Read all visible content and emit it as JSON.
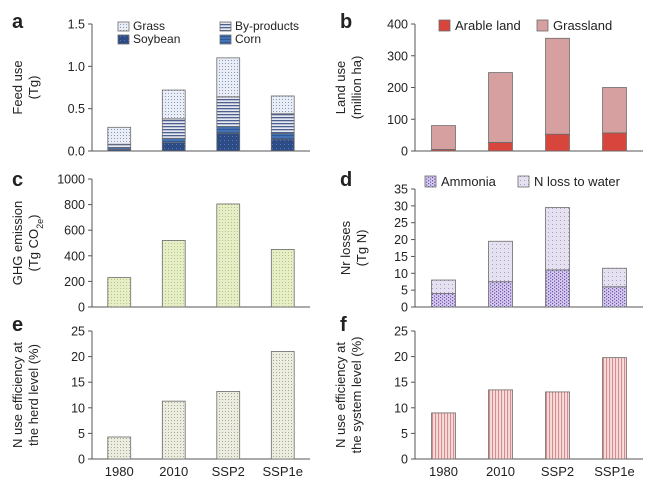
{
  "chart_data": [
    {
      "panel": "a",
      "type": "bar",
      "stacked": true,
      "categories": [
        "1980",
        "2010",
        "SSP2",
        "SSP1e"
      ],
      "ylabel": [
        "Feed use",
        "(Tg)"
      ],
      "ylim": [
        0,
        1.5
      ],
      "yticks": [
        "0.0",
        "0.5",
        "1.0",
        "1.5"
      ],
      "show_xticks": false,
      "legend_layout": "grid",
      "legend_position": "top",
      "series": [
        {
          "name": "Soybean",
          "values": [
            0.02,
            0.1,
            0.21,
            0.14
          ],
          "color": "#2e4f8c",
          "pattern": "soybean"
        },
        {
          "name": "Corn",
          "values": [
            0.02,
            0.05,
            0.08,
            0.07
          ],
          "color": "#4a73b5",
          "pattern": "corn"
        },
        {
          "name": "By-products",
          "values": [
            0.04,
            0.23,
            0.35,
            0.23
          ],
          "color": "#8e9bbf",
          "pattern": "byprod"
        },
        {
          "name": "Grass",
          "values": [
            0.2,
            0.34,
            0.46,
            0.21
          ],
          "color": "#cfd5e6",
          "pattern": "grass"
        }
      ],
      "legend_order": [
        "Grass",
        "By-products",
        "Soybean",
        "Corn"
      ]
    },
    {
      "panel": "b",
      "type": "bar",
      "stacked": true,
      "categories": [
        "1980",
        "2010",
        "SSP2",
        "SSP1e"
      ],
      "ylabel": [
        "Land use",
        "(million ha)"
      ],
      "ylim": [
        0,
        400
      ],
      "yticks": [
        "0",
        "100",
        "200",
        "300",
        "400"
      ],
      "show_xticks": false,
      "legend_layout": "row",
      "legend_position": "top",
      "series": [
        {
          "name": "Arable land",
          "values": [
            5,
            27,
            53,
            57
          ],
          "color": "#d9453c",
          "pattern": "solid-red"
        },
        {
          "name": "Grassland",
          "values": [
            75,
            220,
            302,
            143
          ],
          "color": "#d99c9c",
          "pattern": "solid-pink"
        }
      ],
      "legend_order": [
        "Arable land",
        "Grassland"
      ]
    },
    {
      "panel": "c",
      "type": "bar",
      "stacked": false,
      "categories": [
        "1980",
        "2010",
        "SSP2",
        "SSP1e"
      ],
      "ylabel": [
        "GHG emission",
        "(Tg CO₂e)"
      ],
      "ylim": [
        0,
        1000
      ],
      "yticks": [
        "0",
        "200",
        "400",
        "600",
        "800",
        "1000"
      ],
      "show_xticks": false,
      "series": [
        {
          "name": "",
          "values": [
            230,
            520,
            805,
            450
          ],
          "color": "#e3ebc2",
          "pattern": "green"
        }
      ]
    },
    {
      "panel": "d",
      "type": "bar",
      "stacked": true,
      "categories": [
        "1980",
        "2010",
        "SSP2",
        "SSP1e"
      ],
      "ylabel": [
        "Nr losses",
        "(Tg N)"
      ],
      "ylim": [
        0,
        35
      ],
      "yticks": [
        "0",
        "5",
        "10",
        "15",
        "20",
        "25",
        "30",
        "35"
      ],
      "show_xticks": false,
      "legend_layout": "row",
      "legend_position": "top",
      "series": [
        {
          "name": "Ammonia",
          "values": [
            4,
            7.5,
            11,
            6
          ],
          "color": "#b9a6e0",
          "pattern": "ammonia"
        },
        {
          "name": "N loss to water",
          "values": [
            4,
            12,
            18.5,
            5.5
          ],
          "color": "#dcd6ea",
          "pattern": "nwater"
        }
      ],
      "legend_order": [
        "Ammonia",
        "N loss to water"
      ]
    },
    {
      "panel": "e",
      "type": "bar",
      "stacked": false,
      "categories": [
        "1980",
        "2010",
        "SSP2",
        "SSP1e"
      ],
      "ylabel": [
        "N use efficiency at",
        "the herd level (%)"
      ],
      "ylim": [
        0,
        25
      ],
      "yticks": [
        "0",
        "5",
        "10",
        "15",
        "20",
        "25"
      ],
      "show_xticks": true,
      "series": [
        {
          "name": "",
          "values": [
            4.3,
            11.3,
            13.2,
            21
          ],
          "color": "#e4e4d2",
          "pattern": "grey"
        }
      ]
    },
    {
      "panel": "f",
      "type": "bar",
      "stacked": false,
      "categories": [
        "1980",
        "2010",
        "SSP2",
        "SSP1e"
      ],
      "ylabel": [
        "N use efficiency at",
        "the system level (%)"
      ],
      "ylim": [
        0,
        25
      ],
      "yticks": [
        "0",
        "5",
        "10",
        "15",
        "20",
        "25"
      ],
      "show_xticks": true,
      "series": [
        {
          "name": "",
          "values": [
            9,
            13.5,
            13.1,
            19.8
          ],
          "color": "#f2c9c9",
          "pattern": "pinkstripe"
        }
      ]
    }
  ]
}
